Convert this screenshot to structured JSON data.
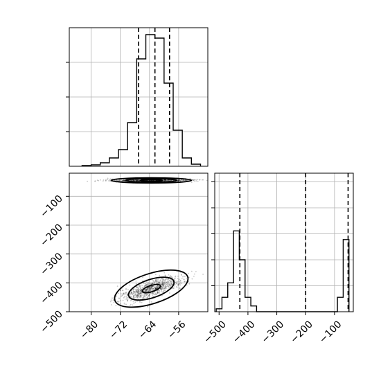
{
  "chart_data": [
    {
      "type": "histogram",
      "panel": "x-marginal",
      "bins": [
        -82.5,
        -80,
        -77.5,
        -75,
        -72.5,
        -70,
        -67.5,
        -65,
        -62.5,
        -60,
        -57.5,
        -55,
        -52.5,
        -50
      ],
      "counts": [
        1,
        2,
        5,
        12,
        24,
        63,
        155,
        190,
        185,
        120,
        52,
        12,
        3
      ],
      "quantile_lines": [
        -67.0,
        -62.5,
        -58.5
      ],
      "xlim": [
        -86,
        -48
      ],
      "ylim": [
        0,
        200
      ],
      "grid": true
    },
    {
      "type": "histogram",
      "panel": "y-marginal",
      "bins": [
        -510,
        -490,
        -470,
        -450,
        -430,
        -410,
        -390,
        -370,
        -350,
        -330,
        -310,
        -290,
        -270,
        -250,
        -230,
        -210,
        -190,
        -170,
        -150,
        -130,
        -110,
        -90,
        -70,
        -50
      ],
      "counts": [
        1,
        5,
        10,
        28,
        18,
        5,
        2,
        0,
        0,
        0,
        0,
        0,
        0,
        0,
        0,
        0,
        0,
        0,
        0,
        0,
        0,
        5,
        25
      ],
      "quantile_lines": [
        -428,
        -200,
        -53
      ],
      "xlim": [
        -515,
        -35
      ],
      "ylim": [
        0,
        48
      ],
      "xticks": [
        "−500",
        "−400",
        "−300",
        "−200",
        "−100"
      ],
      "grid": true
    },
    {
      "type": "scatter",
      "panel": "joint-density",
      "clusters": [
        {
          "x_center": -63.5,
          "y_center": -420,
          "x_spread": 4.5,
          "y_spread": 22,
          "count": 900
        },
        {
          "x_center": -63.5,
          "y_center": -45,
          "x_spread": 6,
          "y_spread": 3,
          "count": 700
        }
      ],
      "contours": [
        {
          "cluster": 0,
          "level": 1,
          "rx": 10.5,
          "ry": 52
        },
        {
          "cluster": 0,
          "level": 2,
          "rx": 6.5,
          "ry": 32
        },
        {
          "cluster": 0,
          "level": 3,
          "rx": 2.6,
          "ry": 11
        },
        {
          "cluster": 1,
          "level": 1,
          "rx": 11,
          "ry": 9
        },
        {
          "cluster": 1,
          "level": 2,
          "rx": 7,
          "ry": 6
        },
        {
          "cluster": 1,
          "level": 3,
          "rx": 3,
          "ry": 3
        }
      ],
      "xlim": [
        -86,
        -48
      ],
      "ylim": [
        -500,
        -20
      ],
      "xticks": [
        "−80",
        "−72",
        "−64",
        "−56"
      ],
      "yticks": [
        "−100",
        "−200",
        "−300",
        "−400",
        "−500"
      ],
      "grid": true
    }
  ]
}
